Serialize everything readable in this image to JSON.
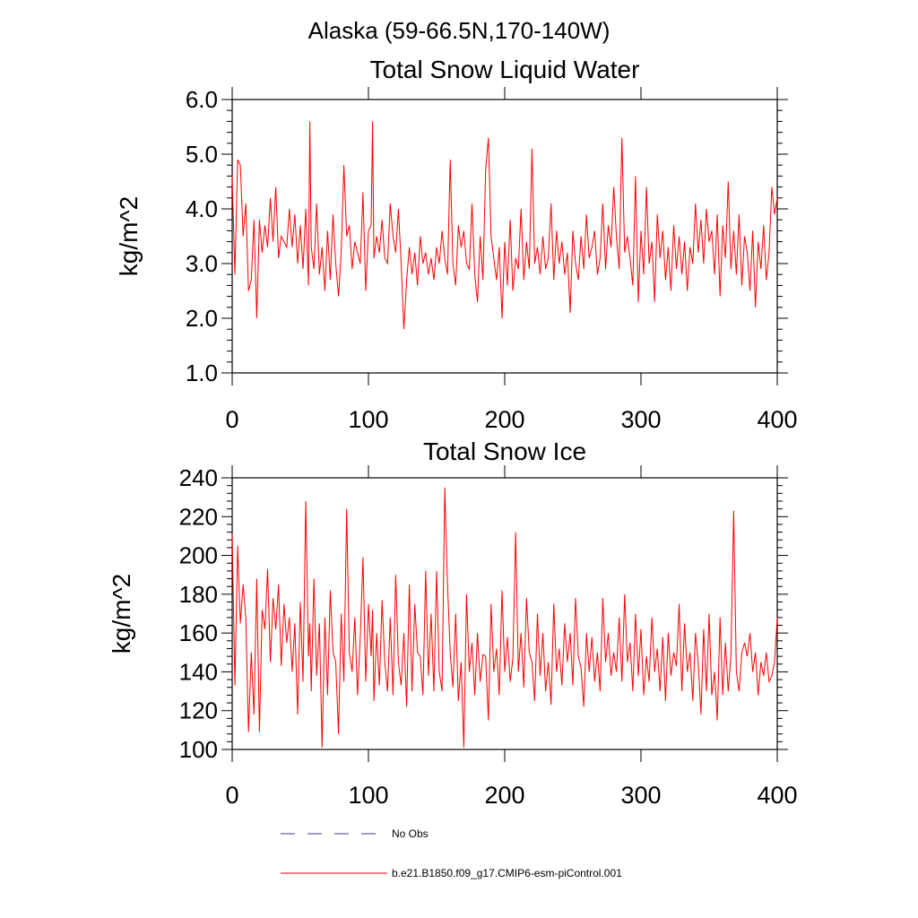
{
  "figure_title": "Alaska (59-66.5N,170-140W)",
  "legend": {
    "obs": {
      "label": "No Obs",
      "color": "#3b3b8f",
      "dash": true
    },
    "model": {
      "label": "b.e21.B1850.f09_g17.CMIP6-esm-piControl.001",
      "color": "#ff0000",
      "dash": false
    }
  },
  "chart_data": [
    {
      "type": "line",
      "title": "Total Snow Liquid Water",
      "xlabel": "",
      "ylabel": "kg/m^2",
      "xlim": [
        0,
        400
      ],
      "ylim": [
        1.0,
        6.0
      ],
      "xticks": [
        0,
        100,
        200,
        300,
        400
      ],
      "xtick_labels": [
        "0",
        "100",
        "200",
        "300",
        "400"
      ],
      "yticks": [
        1.0,
        2.0,
        3.0,
        4.0,
        5.0,
        6.0
      ],
      "ytick_labels": [
        "1.0",
        "2.0",
        "3.0",
        "4.0",
        "5.0",
        "6.0"
      ],
      "grid": false,
      "series": [
        {
          "name": "b.e21.B1850.f09_g17.CMIP6-esm-piControl.001",
          "color": "#ff0000",
          "x": [
            0,
            2,
            4,
            6,
            8,
            10,
            12,
            14,
            16,
            18,
            20,
            22,
            24,
            26,
            28,
            30,
            32,
            34,
            36,
            38,
            40,
            42,
            44,
            46,
            48,
            50,
            52,
            54,
            56,
            57,
            58,
            60,
            62,
            64,
            66,
            68,
            70,
            72,
            74,
            76,
            78,
            80,
            82,
            84,
            86,
            88,
            90,
            92,
            94,
            96,
            98,
            100,
            102,
            103,
            104,
            106,
            108,
            110,
            112,
            114,
            116,
            118,
            120,
            122,
            124,
            126,
            128,
            130,
            132,
            134,
            136,
            138,
            140,
            142,
            144,
            146,
            148,
            150,
            152,
            154,
            156,
            158,
            160,
            162,
            164,
            166,
            168,
            170,
            172,
            174,
            176,
            178,
            180,
            182,
            184,
            186,
            188,
            190,
            192,
            194,
            196,
            198,
            200,
            202,
            204,
            206,
            208,
            210,
            212,
            214,
            216,
            218,
            220,
            222,
            224,
            226,
            228,
            230,
            232,
            234,
            236,
            238,
            240,
            242,
            244,
            246,
            248,
            250,
            252,
            254,
            256,
            258,
            260,
            262,
            264,
            266,
            268,
            270,
            272,
            274,
            276,
            278,
            280,
            282,
            284,
            286,
            288,
            290,
            292,
            294,
            296,
            298,
            300,
            302,
            304,
            306,
            308,
            310,
            312,
            314,
            316,
            318,
            320,
            322,
            324,
            326,
            328,
            330,
            332,
            334,
            336,
            338,
            340,
            342,
            344,
            346,
            348,
            350,
            352,
            354,
            356,
            358,
            360,
            362,
            364,
            366,
            368,
            370,
            372,
            374,
            376,
            378,
            380,
            382,
            384,
            386,
            388,
            390,
            392,
            394,
            396,
            398,
            400
          ],
          "y": [
            4.6,
            2.8,
            4.9,
            4.8,
            3.5,
            4.1,
            2.5,
            2.7,
            3.8,
            2.0,
            3.8,
            3.2,
            3.7,
            3.3,
            4.2,
            3.4,
            4.4,
            3.1,
            3.5,
            3.4,
            3.3,
            4.0,
            3.3,
            3.9,
            3.0,
            3.7,
            2.9,
            4.0,
            2.6,
            5.6,
            3.3,
            2.9,
            4.1,
            2.8,
            3.3,
            2.5,
            3.6,
            2.7,
            3.9,
            3.0,
            2.4,
            3.2,
            4.8,
            3.5,
            3.7,
            2.9,
            3.4,
            3.2,
            3.0,
            4.3,
            2.5,
            3.6,
            3.7,
            5.6,
            3.1,
            3.5,
            3.2,
            3.8,
            3.1,
            3.0,
            4.1,
            3.5,
            3.2,
            4.0,
            3.0,
            1.8,
            2.7,
            3.3,
            2.8,
            3.2,
            2.6,
            3.5,
            3.0,
            3.2,
            2.8,
            3.1,
            2.7,
            3.3,
            3.0,
            3.6,
            3.1,
            2.8,
            4.9,
            3.0,
            2.6,
            3.7,
            3.3,
            3.6,
            3.0,
            2.9,
            4.1,
            2.8,
            2.3,
            3.5,
            2.7,
            4.7,
            5.3,
            3.5,
            3.1,
            2.7,
            3.3,
            2.0,
            3.4,
            2.6,
            3.8,
            2.5,
            3.1,
            2.9,
            4.0,
            2.7,
            3.4,
            2.9,
            5.1,
            3.0,
            3.3,
            2.8,
            3.5,
            2.9,
            3.1,
            4.1,
            2.7,
            3.6,
            3.0,
            3.4,
            2.8,
            3.2,
            2.1,
            3.6,
            3.0,
            2.7,
            3.5,
            2.9,
            3.9,
            3.1,
            3.3,
            3.6,
            2.8,
            3.1,
            4.1,
            2.9,
            3.7,
            3.3,
            4.4,
            3.5,
            2.9,
            5.3,
            3.2,
            3.5,
            3.1,
            2.6,
            4.6,
            2.3,
            3.6,
            2.8,
            4.4,
            3.0,
            3.4,
            2.3,
            3.9,
            3.1,
            3.6,
            2.7,
            3.3,
            2.5,
            3.7,
            2.9,
            3.5,
            2.8,
            3.4,
            2.5,
            3.3,
            3.0,
            4.1,
            3.2,
            3.8,
            3.0,
            4.0,
            3.4,
            3.6,
            2.8,
            3.9,
            2.4,
            3.7,
            3.1,
            4.5,
            2.9,
            3.6,
            2.8,
            3.9,
            2.6,
            3.5,
            3.2,
            2.5,
            3.6,
            2.2,
            3.4,
            2.9,
            3.7,
            2.7,
            3.2,
            4.4,
            3.9,
            4.2
          ]
        }
      ]
    },
    {
      "type": "line",
      "title": "Total Snow Ice",
      "xlabel": "",
      "ylabel": "kg/m^2",
      "xlim": [
        0,
        400
      ],
      "ylim": [
        100,
        240
      ],
      "xticks": [
        0,
        100,
        200,
        300,
        400
      ],
      "xtick_labels": [
        "0",
        "100",
        "200",
        "300",
        "400"
      ],
      "yticks": [
        100,
        120,
        140,
        160,
        180,
        200,
        220,
        240
      ],
      "ytick_labels": [
        "100",
        "120",
        "140",
        "160",
        "180",
        "200",
        "220",
        "240"
      ],
      "grid": false,
      "series": [
        {
          "name": "b.e21.B1850.f09_g17.CMIP6-esm-piControl.001",
          "color": "#ff0000",
          "x": [
            0,
            2,
            4,
            6,
            8,
            10,
            12,
            14,
            16,
            18,
            20,
            22,
            24,
            26,
            28,
            30,
            32,
            34,
            36,
            38,
            40,
            42,
            44,
            46,
            48,
            50,
            52,
            54,
            56,
            57,
            58,
            60,
            62,
            64,
            66,
            68,
            70,
            72,
            74,
            76,
            78,
            80,
            82,
            84,
            86,
            88,
            90,
            92,
            94,
            96,
            98,
            100,
            102,
            103,
            104,
            106,
            108,
            110,
            112,
            114,
            116,
            118,
            120,
            122,
            124,
            126,
            128,
            130,
            132,
            134,
            136,
            138,
            140,
            142,
            144,
            146,
            148,
            150,
            152,
            154,
            156,
            158,
            160,
            162,
            164,
            166,
            168,
            170,
            172,
            174,
            176,
            178,
            180,
            182,
            184,
            186,
            188,
            190,
            192,
            194,
            196,
            198,
            200,
            202,
            204,
            206,
            208,
            210,
            212,
            214,
            216,
            218,
            220,
            222,
            224,
            226,
            228,
            230,
            232,
            234,
            236,
            238,
            240,
            242,
            244,
            246,
            248,
            250,
            252,
            254,
            256,
            258,
            260,
            262,
            264,
            266,
            268,
            270,
            272,
            274,
            276,
            278,
            280,
            282,
            284,
            286,
            288,
            290,
            292,
            294,
            296,
            298,
            300,
            302,
            304,
            306,
            308,
            310,
            312,
            314,
            316,
            318,
            320,
            322,
            324,
            326,
            328,
            330,
            332,
            334,
            336,
            338,
            340,
            342,
            344,
            346,
            348,
            350,
            352,
            354,
            356,
            358,
            360,
            362,
            364,
            366,
            368,
            370,
            372,
            374,
            376,
            378,
            380,
            382,
            384,
            386,
            388,
            390,
            392,
            394,
            396,
            398,
            400
          ],
          "y": [
            211,
            133,
            205,
            165,
            185,
            168,
            109,
            150,
            118,
            188,
            109,
            172,
            162,
            193,
            145,
            178,
            162,
            185,
            143,
            175,
            155,
            168,
            140,
            165,
            118,
            176,
            135,
            228,
            148,
            165,
            130,
            188,
            138,
            165,
            101,
            168,
            128,
            182,
            150,
            145,
            108,
            170,
            135,
            224,
            150,
            140,
            168,
            128,
            158,
            199,
            135,
            175,
            148,
            172,
            125,
            160,
            133,
            177,
            145,
            130,
            168,
            128,
            190,
            145,
            133,
            160,
            122,
            185,
            130,
            175,
            150,
            148,
            128,
            192,
            138,
            170,
            130,
            192,
            140,
            130,
            235,
            185,
            150,
            132,
            170,
            125,
            145,
            101,
            180,
            140,
            155,
            128,
            160,
            135,
            149,
            148,
            115,
            175,
            140,
            152,
            128,
            182,
            140,
            158,
            135,
            147,
            212,
            140,
            160,
            132,
            178,
            150,
            145,
            125,
            170,
            138,
            160,
            130,
            145,
            123,
            175,
            140,
            152,
            133,
            165,
            145,
            160,
            133,
            178,
            148,
            142,
            122,
            160,
            140,
            158,
            135,
            150,
            130,
            178,
            145,
            160,
            138,
            150,
            140,
            168,
            135,
            180,
            145,
            155,
            130,
            170,
            138,
            162,
            128,
            148,
            135,
            168,
            140,
            152,
            130,
            158,
            125,
            160,
            138,
            150,
            143,
            175,
            130,
            165,
            140,
            150,
            125,
            160,
            145,
            118,
            162,
            130,
            170,
            128,
            140,
            115,
            168,
            128,
            155,
            130,
            148,
            223,
            140,
            130,
            150,
            155,
            148,
            160,
            140,
            150,
            128,
            145,
            138,
            150,
            135,
            138,
            145,
            168
          ]
        }
      ]
    }
  ]
}
